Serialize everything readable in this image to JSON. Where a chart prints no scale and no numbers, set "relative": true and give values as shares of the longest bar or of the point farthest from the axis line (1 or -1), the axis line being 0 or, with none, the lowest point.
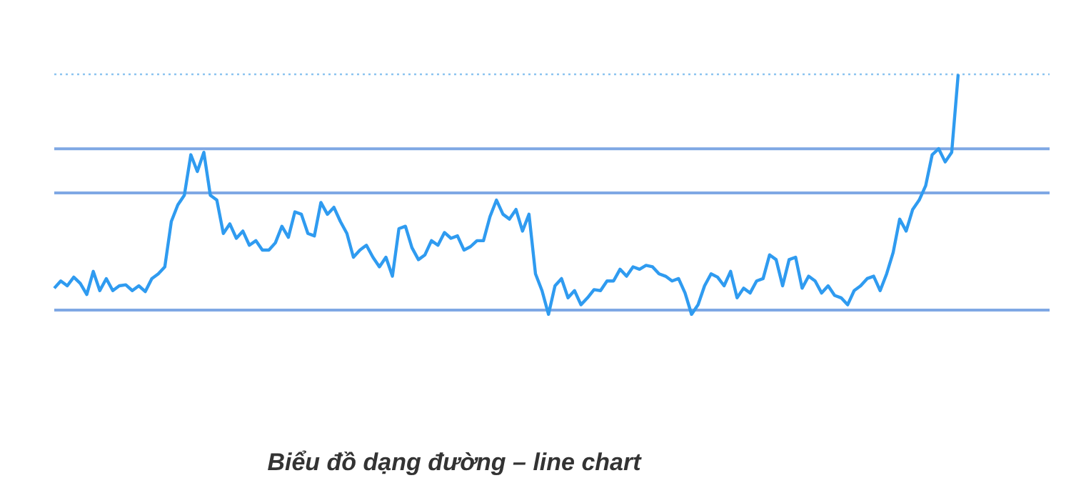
{
  "chart_data": {
    "type": "line",
    "relative": true,
    "color": "#2f9bf0",
    "line_style": "solid",
    "marker": "none",
    "legend": false,
    "categories": [
      null,
      null,
      null,
      null,
      null,
      null,
      null,
      null,
      null,
      null,
      null,
      null,
      null,
      null,
      null,
      null,
      null,
      null,
      null,
      null,
      null,
      null,
      null,
      null,
      null,
      null,
      null,
      null,
      null,
      null,
      null,
      null,
      null,
      null,
      null,
      null,
      null,
      null,
      null,
      null,
      null,
      null,
      null,
      null,
      null,
      null,
      null,
      null,
      null,
      null,
      null,
      null,
      null,
      null,
      null,
      null,
      null,
      null,
      null,
      null,
      null,
      null,
      null,
      null,
      null,
      null,
      null,
      null,
      null,
      null,
      null,
      null,
      null,
      null,
      null,
      null,
      null,
      null,
      null,
      null,
      null,
      null,
      null,
      null,
      null,
      null,
      null,
      null,
      null,
      null,
      null,
      null,
      null,
      null,
      null,
      null,
      null,
      null,
      null,
      null,
      null,
      null,
      null,
      null,
      null,
      null,
      null,
      null,
      null,
      null,
      null,
      null,
      null,
      null,
      null,
      null,
      null,
      null,
      null,
      null,
      null,
      null,
      null,
      null,
      null,
      null,
      null,
      null,
      null,
      null,
      null,
      null,
      null,
      null,
      null,
      null,
      null,
      null,
      null,
      null
    ],
    "values": [
      0.109,
      0.139,
      0.119,
      0.155,
      0.129,
      0.083,
      0.179,
      0.099,
      0.149,
      0.099,
      0.119,
      0.123,
      0.099,
      0.119,
      0.095,
      0.149,
      0.169,
      0.198,
      0.387,
      0.456,
      0.496,
      0.665,
      0.595,
      0.675,
      0.496,
      0.476,
      0.337,
      0.377,
      0.317,
      0.347,
      0.288,
      0.307,
      0.268,
      0.268,
      0.298,
      0.367,
      0.321,
      0.427,
      0.417,
      0.337,
      0.327,
      0.466,
      0.417,
      0.446,
      0.387,
      0.337,
      0.238,
      0.268,
      0.288,
      0.238,
      0.198,
      0.238,
      0.159,
      0.357,
      0.367,
      0.278,
      0.228,
      0.248,
      0.307,
      0.288,
      0.341,
      0.317,
      0.327,
      0.268,
      0.282,
      0.307,
      0.307,
      0.407,
      0.476,
      0.417,
      0.397,
      0.437,
      0.347,
      0.417,
      0.169,
      0.099,
      0,
      0.119,
      0.149,
      0.069,
      0.099,
      0.04,
      0.069,
      0.103,
      0.099,
      0.139,
      0.139,
      0.188,
      0.159,
      0.198,
      0.188,
      0.204,
      0.198,
      0.169,
      0.159,
      0.139,
      0.149,
      0.089,
      0,
      0.04,
      0.119,
      0.169,
      0.155,
      0.119,
      0.179,
      0.069,
      0.109,
      0.089,
      0.139,
      0.149,
      0.248,
      0.228,
      0.119,
      0.228,
      0.238,
      0.109,
      0.159,
      0.139,
      0.089,
      0.119,
      0.079,
      0.069,
      0.04,
      0.099,
      0.119,
      0.149,
      0.159,
      0.099,
      0.169,
      0.258,
      0.397,
      0.347,
      0.437,
      0.476,
      0.536,
      0.665,
      0.69,
      0.635,
      0.675,
      1
    ],
    "ref_lines": [
      {
        "axis": "y",
        "value": 1,
        "color": "#8cc4f0",
        "line_style": "dotted"
      },
      {
        "axis": "y",
        "value": 0.69,
        "color": "#7fa8e4",
        "line_style": "solid"
      },
      {
        "axis": "y",
        "value": 0.506,
        "color": "#7fa8e4",
        "line_style": "solid"
      },
      {
        "axis": "y",
        "value": 0.018,
        "color": "#7fa8e4",
        "line_style": "solid"
      }
    ],
    "annotations": [
      "Biểu đồ dạng đường – line chart"
    ]
  }
}
